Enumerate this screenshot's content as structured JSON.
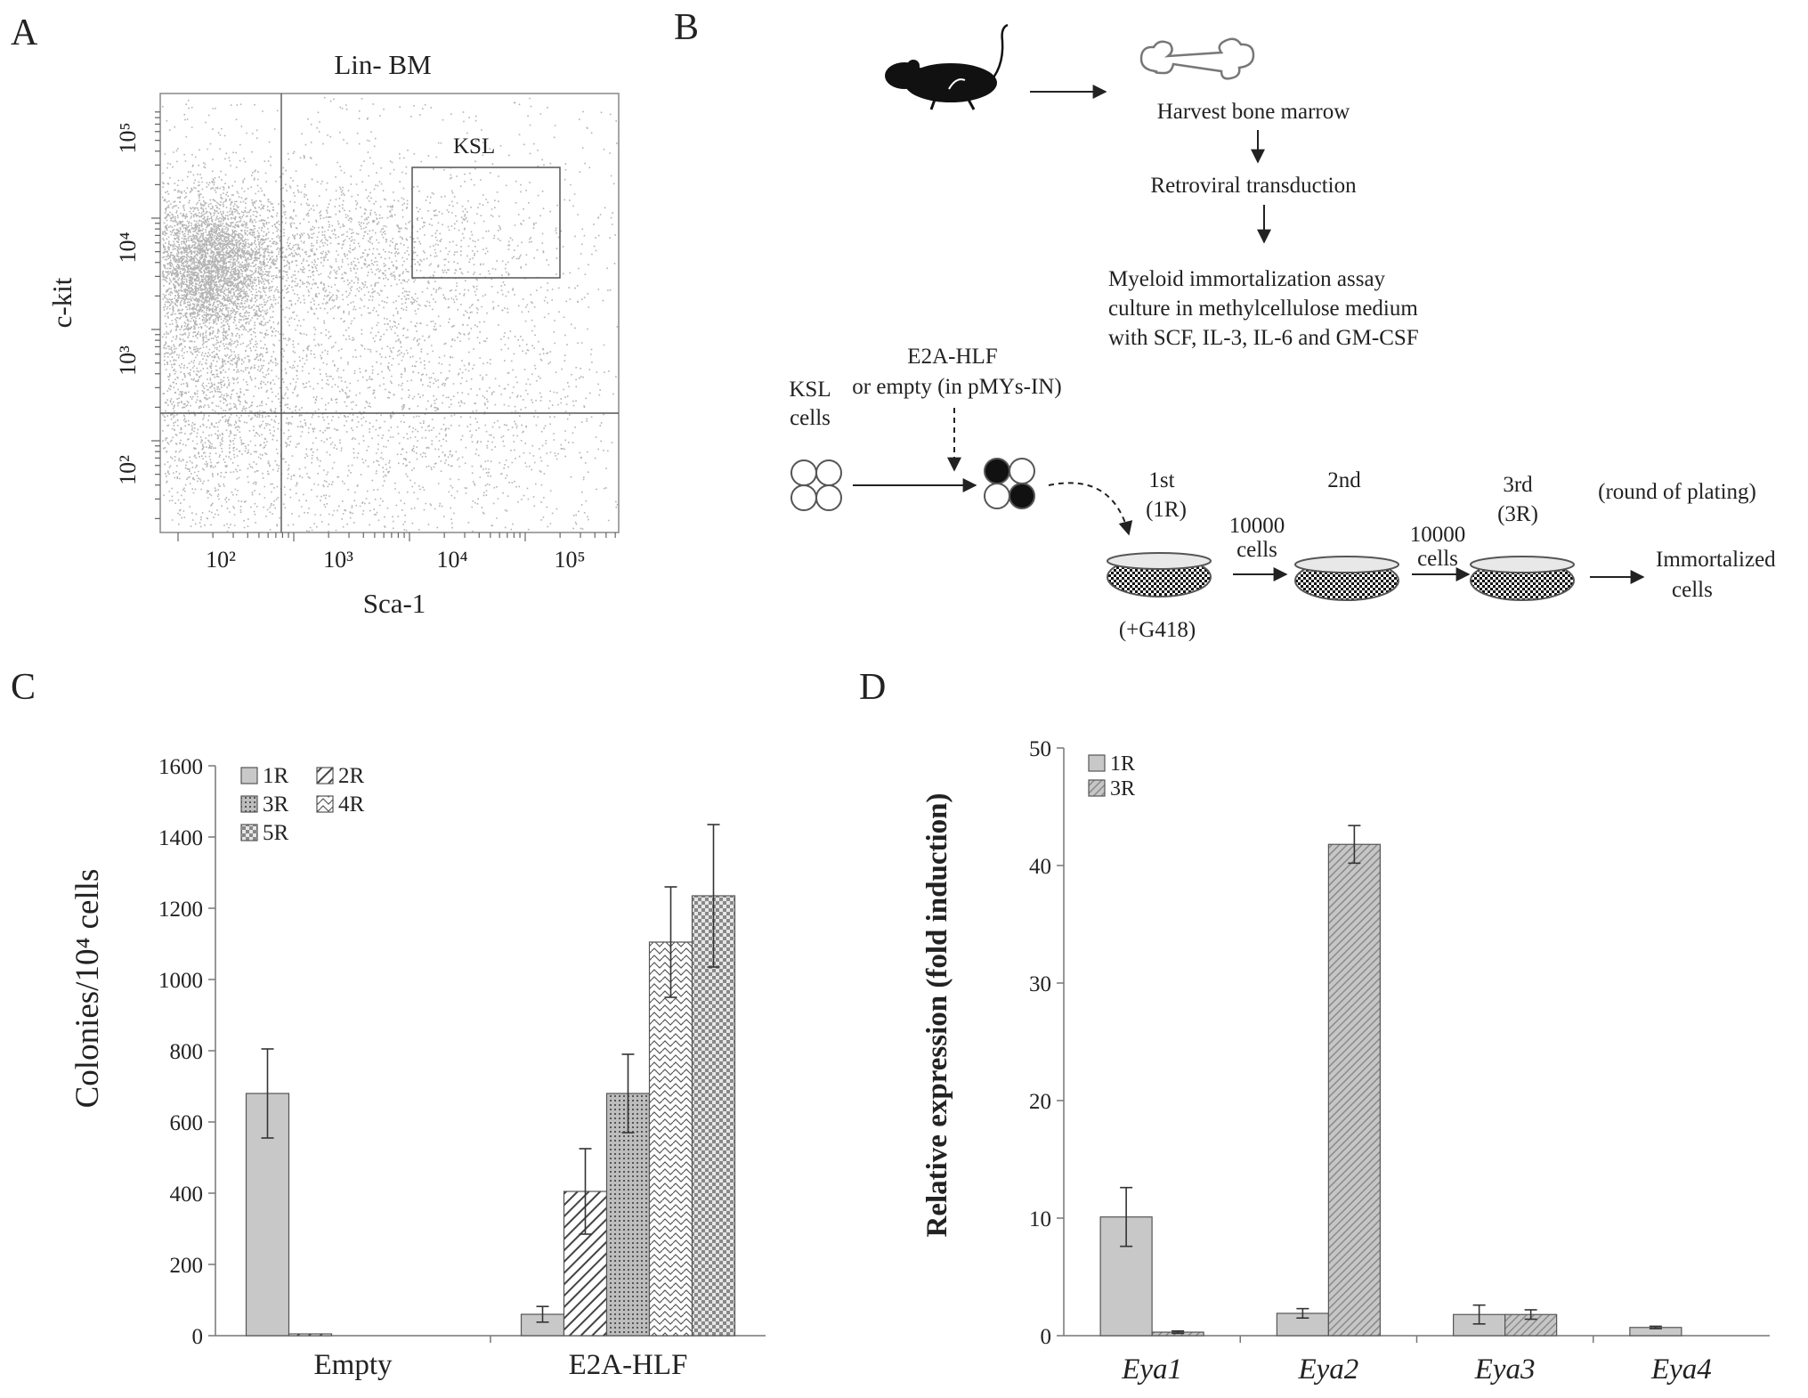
{
  "panel_letters": {
    "a": "A",
    "b": "B",
    "c": "C",
    "d": "D"
  },
  "panel_a": {
    "title": "Lin- BM",
    "xlabel": "Sca-1",
    "ylabel": "c-kit",
    "x_ticks": [
      "10²",
      "10³",
      "10⁴",
      "10⁵"
    ],
    "y_ticks": [
      "10⁵",
      "10⁴",
      "10³",
      "10²"
    ],
    "gate_label": "KSL"
  },
  "panel_b": {
    "harvest": "Harvest bone marrow",
    "transduction": "Retroviral transduction",
    "assay_lines": [
      "Myeloid immortalization assay",
      "culture in methylcellulose medium",
      "with SCF, IL-3, IL-6 and GM-CSF"
    ],
    "vector_lines": [
      "E2A-HLF",
      "or empty (in pMYs-IN)"
    ],
    "ksl_lines": [
      "KSL",
      "cells"
    ],
    "round1_lines": [
      "1st",
      "(1R)"
    ],
    "round2": "2nd",
    "round3_lines": [
      "3rd",
      "(3R)"
    ],
    "round_note": "(round of plating)",
    "transfer1_lines": [
      "10000",
      "cells"
    ],
    "transfer2_lines": [
      "10000",
      "cells"
    ],
    "g418": "(+G418)",
    "result_lines": [
      "Immortalized",
      "cells"
    ]
  },
  "chart_data": [
    {
      "type": "bar",
      "panel": "C",
      "ylabel": "Colonies/10⁴ cells",
      "ylim": [
        0,
        1600
      ],
      "y_ticks": [
        "0",
        "200",
        "400",
        "600",
        "800",
        "1000",
        "1200",
        "1400",
        "1600"
      ],
      "categories": [
        "Empty",
        "E2A-HLF"
      ],
      "series": [
        {
          "name": "1R",
          "values": [
            680,
            60
          ],
          "errors": [
            125,
            22
          ]
        },
        {
          "name": "2R",
          "values": [
            5,
            405
          ],
          "errors": [
            0,
            120
          ]
        },
        {
          "name": "3R",
          "values": [
            0,
            680
          ],
          "errors": [
            0,
            110
          ]
        },
        {
          "name": "4R",
          "values": [
            0,
            1105
          ],
          "errors": [
            0,
            155
          ]
        },
        {
          "name": "5R",
          "values": [
            0,
            1235
          ],
          "errors": [
            0,
            200
          ]
        }
      ],
      "legend": "top-left"
    },
    {
      "type": "bar",
      "panel": "D",
      "ylabel": "Relative expression (fold induction)",
      "ylim": [
        0,
        50
      ],
      "y_ticks": [
        "0",
        "10",
        "20",
        "30",
        "40",
        "50"
      ],
      "categories": [
        "Eya1",
        "Eya2",
        "Eya3",
        "Eya4"
      ],
      "series": [
        {
          "name": "1R",
          "values": [
            10.1,
            1.9,
            1.8,
            0.7
          ],
          "errors": [
            2.5,
            0.4,
            0.8,
            0.1
          ]
        },
        {
          "name": "3R",
          "values": [
            0.3,
            41.8,
            1.8,
            0
          ],
          "errors": [
            0.1,
            1.6,
            0.4,
            0
          ]
        }
      ],
      "legend": "top-left"
    }
  ],
  "colors": {
    "bar_fill": "#c8c8c8",
    "bar_stroke": "#555555",
    "axis": "#777777",
    "dots": "#9a9a9a"
  },
  "icons": [
    "mouse-icon",
    "bone-icon",
    "culture-dish-icon"
  ]
}
